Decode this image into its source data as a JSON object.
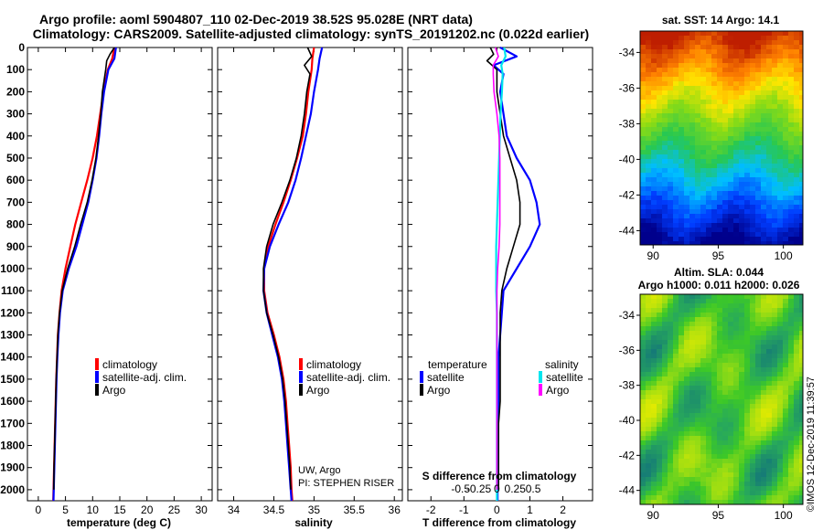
{
  "figure": {
    "title_line1": "Argo profile: aoml 5904807_110 02-Dec-2019 38.52S 95.028E (NRT data)",
    "title_line2": "Climatology: CARS2009. Satellite-adjusted climatology: synTS_20191202.nc (0.022d earlier)",
    "credit": "UW, Argo",
    "pi": "PI: STEPHEN RISER",
    "watermark": "©IMOS 12-Dec-2019 11:39:57"
  },
  "colors": {
    "climatology": "#ff0000",
    "satellite": "#0000ff",
    "argo": "#000000",
    "sat_salinity": "#00e5ee",
    "argo_salinity": "#ff00ff"
  },
  "chart_data": [
    {
      "type": "line",
      "id": "temperature",
      "xlabel": "temperature (deg C)",
      "ylabel": "",
      "xlim": [
        -2,
        32
      ],
      "ylim": [
        2050,
        0
      ],
      "xticks": [
        0,
        5,
        10,
        15,
        20,
        25,
        30
      ],
      "yticks": [
        0,
        100,
        200,
        300,
        400,
        500,
        600,
        700,
        800,
        900,
        1000,
        1100,
        1200,
        1300,
        1400,
        1500,
        1600,
        1700,
        1800,
        1900,
        2000
      ],
      "legend": [
        "climatology",
        "satellite-adj. clim.",
        "Argo"
      ],
      "series": [
        {
          "name": "climatology",
          "depth": [
            0,
            50,
            100,
            200,
            300,
            400,
            500,
            600,
            700,
            800,
            900,
            1000,
            1100,
            1200,
            1300,
            1400,
            1500,
            1600,
            1700,
            1800,
            1900,
            2000,
            2050
          ],
          "values": [
            14.0,
            13.6,
            12.8,
            12.0,
            11.4,
            10.8,
            10.0,
            9.0,
            7.9,
            6.8,
            5.9,
            5.0,
            4.3,
            3.9,
            3.6,
            3.45,
            3.3,
            3.2,
            3.1,
            3.0,
            2.9,
            2.8,
            2.75
          ]
        },
        {
          "name": "satellite-adj. clim.",
          "depth": [
            0,
            50,
            100,
            200,
            300,
            400,
            500,
            600,
            700,
            800,
            900,
            1000,
            1100,
            1200,
            1300,
            1400,
            1500,
            1600,
            1700,
            1800,
            1900,
            2000,
            2050
          ],
          "values": [
            14.3,
            14.0,
            12.9,
            12.1,
            11.6,
            11.2,
            10.7,
            10.0,
            9.2,
            8.1,
            7.0,
            5.6,
            4.5,
            4.0,
            3.7,
            3.5,
            3.35,
            3.25,
            3.15,
            3.05,
            2.95,
            2.85,
            2.8
          ]
        },
        {
          "name": "Argo",
          "depth": [
            0,
            30,
            60,
            100,
            200,
            300,
            400,
            500,
            600,
            700,
            800,
            900,
            1000,
            1100,
            1200,
            1300,
            1400,
            1500,
            1600,
            1700,
            1800,
            1900,
            2000
          ],
          "values": [
            14.0,
            13.2,
            12.6,
            12.4,
            11.8,
            11.5,
            11.1,
            10.6,
            9.9,
            9.0,
            7.8,
            6.7,
            5.4,
            4.4,
            3.9,
            3.6,
            3.45,
            3.3,
            3.2,
            3.1,
            3.0,
            2.9,
            2.85
          ]
        }
      ]
    },
    {
      "type": "line",
      "id": "salinity",
      "xlabel": "salinity",
      "ylabel": "",
      "xlim": [
        33.8,
        36.1
      ],
      "ylim": [
        2050,
        0
      ],
      "xticks": [
        34,
        34.5,
        35,
        35.5,
        36
      ],
      "legend": [
        "climatology",
        "satellite-adj. clim.",
        "Argo"
      ],
      "series": [
        {
          "name": "climatology",
          "depth": [
            0,
            50,
            100,
            200,
            300,
            400,
            500,
            600,
            700,
            800,
            900,
            1000,
            1100,
            1200,
            1300,
            1400,
            1500,
            1600,
            1700,
            1800,
            1900,
            2000,
            2050
          ],
          "values": [
            35.0,
            34.98,
            34.97,
            34.93,
            34.9,
            34.86,
            34.79,
            34.71,
            34.62,
            34.52,
            34.43,
            34.38,
            34.38,
            34.42,
            34.5,
            34.57,
            34.62,
            34.65,
            34.67,
            34.69,
            34.71,
            34.72,
            34.73
          ]
        },
        {
          "name": "satellite-adj. clim.",
          "depth": [
            0,
            50,
            100,
            200,
            300,
            400,
            500,
            600,
            700,
            800,
            900,
            1000,
            1100,
            1200,
            1300,
            1400,
            1500,
            1600,
            1700,
            1800,
            1900,
            2000,
            2050
          ],
          "values": [
            35.1,
            35.07,
            35.05,
            35.0,
            34.96,
            34.9,
            34.84,
            34.77,
            34.68,
            34.56,
            34.45,
            34.38,
            34.37,
            34.41,
            34.48,
            34.55,
            34.6,
            34.63,
            34.65,
            34.67,
            34.69,
            34.71,
            34.72
          ]
        },
        {
          "name": "Argo",
          "depth": [
            0,
            40,
            80,
            120,
            200,
            300,
            400,
            500,
            600,
            700,
            800,
            900,
            1000,
            1100,
            1200,
            1300,
            1400,
            1500,
            1600,
            1700,
            1800,
            1900,
            2000
          ],
          "values": [
            34.92,
            34.97,
            34.88,
            34.95,
            34.91,
            34.88,
            34.84,
            34.78,
            34.7,
            34.6,
            34.49,
            34.41,
            34.37,
            34.37,
            34.41,
            34.49,
            34.56,
            34.61,
            34.64,
            34.66,
            34.68,
            34.7,
            34.71
          ]
        }
      ]
    },
    {
      "type": "line",
      "id": "difference",
      "xlabel": "T difference from climatology",
      "xlabel2": "S difference from climatology",
      "xlim": [
        -2.7,
        2.9
      ],
      "ylim": [
        2050,
        0
      ],
      "xticks": [
        -2,
        -1,
        0,
        1,
        2
      ],
      "xticks2": [
        -0.5,
        -0.25,
        0,
        0.25,
        0.5
      ],
      "xticks2_labels": [
        "-0.5",
        "-0.25",
        "0",
        "0.25",
        "0.5"
      ],
      "legend_title_t": "temperature",
      "legend_title_s": "salinity",
      "legend_t": [
        "satellite",
        "Argo"
      ],
      "legend_s": [
        "satellite",
        "Argo"
      ],
      "series": [
        {
          "name": "T satellite",
          "depth": [
            0,
            40,
            80,
            120,
            200,
            300,
            400,
            500,
            600,
            700,
            800,
            900,
            1000,
            1100,
            1200,
            1300,
            1400,
            1500,
            1600,
            1700,
            1800,
            1900,
            2000,
            2050
          ],
          "values": [
            0.1,
            0.6,
            -0.1,
            0.2,
            0.1,
            0.2,
            0.3,
            0.6,
            1.0,
            1.2,
            1.3,
            1.0,
            0.6,
            0.2,
            0.15,
            0.1,
            0.05,
            0.05,
            0.05,
            0.03,
            0.02,
            0.02,
            0.02,
            0.02
          ]
        },
        {
          "name": "T Argo",
          "depth": [
            0,
            30,
            60,
            100,
            200,
            300,
            400,
            500,
            600,
            700,
            800,
            900,
            1000,
            1100,
            1200,
            1300,
            1400,
            1500,
            1600,
            1700,
            1800,
            1900,
            2000
          ],
          "values": [
            -0.2,
            -0.1,
            -0.3,
            0.0,
            0.0,
            0.1,
            0.2,
            0.4,
            0.6,
            0.7,
            0.7,
            0.5,
            0.3,
            0.15,
            0.1,
            0.1,
            0.1,
            0.1,
            0.1,
            0.05,
            0.05,
            0.05,
            0.05
          ]
        },
        {
          "name": "S satellite",
          "depth": [
            0,
            40,
            80,
            120,
            200,
            300,
            400,
            500,
            600,
            700,
            800,
            900,
            1000,
            1100,
            1200,
            1300,
            1400,
            1500,
            1600,
            1700,
            1800,
            1900,
            2000,
            2050
          ],
          "values": [
            0.1,
            0.12,
            0.06,
            0.08,
            0.07,
            0.05,
            0.04,
            0.03,
            0.02,
            0.01,
            0.0,
            -0.01,
            -0.01,
            -0.01,
            0.0,
            0.0,
            0.0,
            0.0,
            0.0,
            0.0,
            0.0,
            0.0,
            0.0,
            0.0
          ]
        },
        {
          "name": "S Argo",
          "depth": [
            0,
            40,
            80,
            120,
            200,
            300,
            400,
            500,
            600,
            700,
            800,
            900,
            1000,
            1100,
            1200,
            1300,
            1400,
            1500,
            1600,
            1700,
            1800,
            1900,
            2000
          ],
          "values": [
            -0.02,
            0.02,
            -0.05,
            -0.05,
            -0.04,
            0.0,
            0.03,
            0.04,
            0.04,
            0.04,
            0.04,
            0.03,
            0.01,
            0.0,
            0.0,
            0.0,
            0.0,
            0.0,
            0.0,
            0.0,
            0.0,
            0.0,
            0.0
          ]
        }
      ]
    },
    {
      "type": "heatmap",
      "id": "sst_map",
      "title": "sat. SST: 14 Argo: 14.1",
      "xlim": [
        89,
        101.5
      ],
      "ylim": [
        -44.8,
        -32.8
      ],
      "xticks": [
        90,
        95,
        100
      ],
      "yticks": [
        -34,
        -36,
        -38,
        -40,
        -42,
        -44
      ]
    },
    {
      "type": "heatmap",
      "id": "sla_map",
      "title_line1": "Altim. SLA: 0.044",
      "title_line2": "Argo h1000: 0.011 h2000: 0.026",
      "xlim": [
        89,
        101.5
      ],
      "ylim": [
        -44.8,
        -32.8
      ],
      "xticks": [
        90,
        95,
        100
      ],
      "yticks": [
        -34,
        -36,
        -38,
        -40,
        -42,
        -44
      ]
    }
  ]
}
